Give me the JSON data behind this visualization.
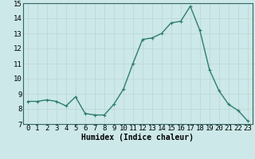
{
  "x": [
    0,
    1,
    2,
    3,
    4,
    5,
    6,
    7,
    8,
    9,
    10,
    11,
    12,
    13,
    14,
    15,
    16,
    17,
    18,
    19,
    20,
    21,
    22,
    23
  ],
  "y": [
    8.5,
    8.5,
    8.6,
    8.5,
    8.2,
    8.8,
    7.7,
    7.6,
    7.6,
    8.3,
    9.3,
    11.0,
    12.6,
    12.7,
    13.0,
    13.7,
    13.8,
    14.8,
    13.2,
    10.6,
    9.2,
    8.3,
    7.9,
    7.2
  ],
  "line_color": "#2e7d6e",
  "marker": "+",
  "marker_size": 3,
  "linewidth": 1.0,
  "xlabel": "Humidex (Indice chaleur)",
  "xlabel_fontsize": 7,
  "ylim": [
    7,
    15
  ],
  "xlim": [
    -0.5,
    23.5
  ],
  "yticks": [
    7,
    8,
    9,
    10,
    11,
    12,
    13,
    14,
    15
  ],
  "xticks": [
    0,
    1,
    2,
    3,
    4,
    5,
    6,
    7,
    8,
    9,
    10,
    11,
    12,
    13,
    14,
    15,
    16,
    17,
    18,
    19,
    20,
    21,
    22,
    23
  ],
  "grid_color": "#c0d8d8",
  "background_color": "#cce8e8",
  "tick_fontsize": 6.5,
  "spine_color": "#336666"
}
